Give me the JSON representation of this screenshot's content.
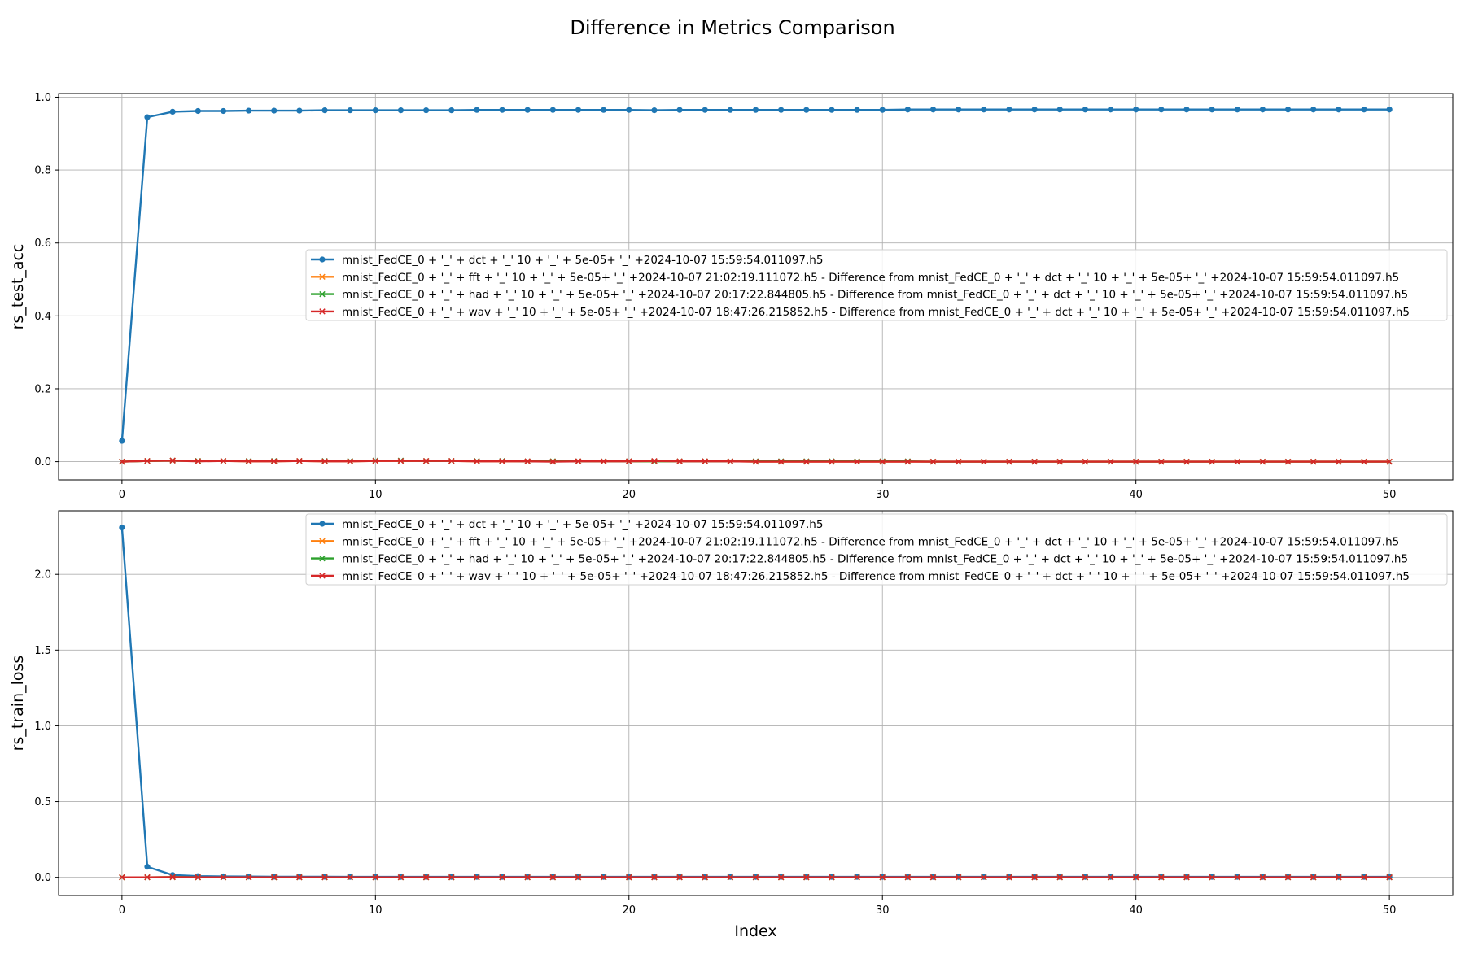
{
  "title": "Difference in Metrics Comparison",
  "legend_entries": [
    "mnist_FedCE_0 + '_' + dct + '_' 10 + '_' + 5e-05+ '_' +2024-10-07 15:59:54.011097.h5",
    "mnist_FedCE_0 + '_' + fft + '_' 10 + '_' + 5e-05+ '_' +2024-10-07 21:02:19.111072.h5 - Difference from mnist_FedCE_0 + '_' + dct + '_' 10 + '_' + 5e-05+ '_' +2024-10-07 15:59:54.011097.h5",
    "mnist_FedCE_0 + '_' + had + '_' 10 + '_' + 5e-05+ '_' +2024-10-07 20:17:22.844805.h5 - Difference from mnist_FedCE_0 + '_' + dct + '_' 10 + '_' + 5e-05+ '_' +2024-10-07 15:59:54.011097.h5",
    "mnist_FedCE_0 + '_' + wav + '_' 10 + '_' + 5e-05+ '_' +2024-10-07 18:47:26.215852.h5 - Difference from mnist_FedCE_0 + '_' + dct + '_' 10 + '_' + 5e-05+ '_' +2024-10-07 15:59:54.011097.h5"
  ],
  "colors": {
    "blue": "#1f77b4",
    "orange": "#ff7f0e",
    "green": "#2ca02c",
    "red": "#d62728",
    "grid": "#b0b0b0"
  },
  "chart_data": [
    {
      "type": "line",
      "ylabel": "rs_test_acc",
      "xlabel": "",
      "xlim": [
        -2.5,
        52.5
      ],
      "ylim": [
        -0.05,
        1.01
      ],
      "xticks": [
        0,
        10,
        20,
        30,
        40,
        50
      ],
      "yticks": [
        0.0,
        0.2,
        0.4,
        0.6,
        0.8,
        1.0
      ],
      "ytick_labels": [
        "0.0",
        "0.2",
        "0.4",
        "0.6",
        "0.8",
        "1.0"
      ],
      "grid": true,
      "legend_placement": "center-right",
      "x": [
        0,
        1,
        2,
        3,
        4,
        5,
        6,
        7,
        8,
        9,
        10,
        11,
        12,
        13,
        14,
        15,
        16,
        17,
        18,
        19,
        20,
        21,
        22,
        23,
        24,
        25,
        26,
        27,
        28,
        29,
        30,
        31,
        32,
        33,
        34,
        35,
        36,
        37,
        38,
        39,
        40,
        41,
        42,
        43,
        44,
        45,
        46,
        47,
        48,
        49,
        50
      ],
      "series": [
        {
          "marker": "circle",
          "color": "#1f77b4",
          "values": [
            0.057,
            0.945,
            0.96,
            0.962,
            0.962,
            0.963,
            0.963,
            0.963,
            0.964,
            0.964,
            0.964,
            0.964,
            0.964,
            0.964,
            0.965,
            0.965,
            0.965,
            0.965,
            0.965,
            0.965,
            0.965,
            0.964,
            0.965,
            0.965,
            0.965,
            0.965,
            0.965,
            0.965,
            0.965,
            0.965,
            0.965,
            0.966,
            0.966,
            0.966,
            0.966,
            0.966,
            0.966,
            0.966,
            0.966,
            0.966,
            0.966,
            0.966,
            0.966,
            0.966,
            0.966,
            0.966,
            0.966,
            0.966,
            0.966,
            0.966,
            0.966
          ]
        },
        {
          "marker": "x",
          "color": "#ff7f0e",
          "values": [
            0.0,
            0.002,
            0.003,
            0.002,
            0.002,
            0.001,
            0.001,
            0.002,
            0.001,
            0.001,
            0.002,
            0.002,
            0.002,
            0.002,
            0.001,
            0.001,
            0.001,
            0.001,
            0.001,
            0.001,
            0.001,
            0.001,
            0.001,
            0.001,
            0.001,
            0.0,
            0.0,
            0.0,
            0.0,
            0.0,
            0.0,
            0.0,
            0.0,
            0.0,
            0.0,
            0.0,
            0.0,
            0.0,
            0.0,
            0.0,
            0.0,
            0.0,
            0.0,
            0.0,
            0.0,
            0.0,
            0.0,
            0.0,
            0.0,
            0.0,
            0.0
          ]
        },
        {
          "marker": "x",
          "color": "#2ca02c",
          "values": [
            0.0,
            0.002,
            0.003,
            0.002,
            0.002,
            0.002,
            0.002,
            0.002,
            0.002,
            0.002,
            0.003,
            0.003,
            0.002,
            0.002,
            0.002,
            0.002,
            0.001,
            0.001,
            0.001,
            0.001,
            0.001,
            0.001,
            0.001,
            0.001,
            0.001,
            0.001,
            0.001,
            0.001,
            0.001,
            0.001,
            0.001,
            0.001,
            0.0,
            0.0,
            0.0,
            0.0,
            0.0,
            0.0,
            0.0,
            0.0,
            0.0,
            0.0,
            0.0,
            0.0,
            0.0,
            0.0,
            0.0,
            0.0,
            0.0,
            0.0,
            0.0
          ]
        },
        {
          "marker": "x",
          "color": "#d62728",
          "values": [
            0.0,
            0.002,
            0.003,
            0.001,
            0.002,
            0.001,
            0.001,
            0.002,
            0.001,
            0.001,
            0.002,
            0.002,
            0.002,
            0.002,
            0.001,
            0.001,
            0.001,
            0.0,
            0.001,
            0.001,
            0.001,
            0.002,
            0.001,
            0.001,
            0.001,
            0.0,
            0.0,
            0.0,
            0.0,
            0.0,
            0.0,
            0.0,
            0.0,
            0.0,
            0.0,
            0.0,
            0.0,
            0.0,
            0.0,
            0.0,
            0.0,
            0.0,
            0.0,
            0.0,
            0.0,
            0.0,
            0.0,
            0.0,
            0.0,
            0.0,
            0.0
          ]
        }
      ]
    },
    {
      "type": "line",
      "ylabel": "rs_train_loss",
      "xlabel": "Index",
      "xlim": [
        -2.5,
        52.5
      ],
      "ylim": [
        -0.12,
        2.42
      ],
      "xticks": [
        0,
        10,
        20,
        30,
        40,
        50
      ],
      "yticks": [
        0.0,
        0.5,
        1.0,
        1.5,
        2.0
      ],
      "ytick_labels": [
        "0.0",
        "0.5",
        "1.0",
        "1.5",
        "2.0"
      ],
      "grid": true,
      "legend_placement": "upper-right",
      "x": [
        0,
        1,
        2,
        3,
        4,
        5,
        6,
        7,
        8,
        9,
        10,
        11,
        12,
        13,
        14,
        15,
        16,
        17,
        18,
        19,
        20,
        21,
        22,
        23,
        24,
        25,
        26,
        27,
        28,
        29,
        30,
        31,
        32,
        33,
        34,
        35,
        36,
        37,
        38,
        39,
        40,
        41,
        42,
        43,
        44,
        45,
        46,
        47,
        48,
        49,
        50
      ],
      "series": [
        {
          "marker": "circle",
          "color": "#1f77b4",
          "values": [
            2.31,
            0.07,
            0.015,
            0.008,
            0.006,
            0.005,
            0.004,
            0.004,
            0.004,
            0.003,
            0.003,
            0.003,
            0.003,
            0.003,
            0.003,
            0.003,
            0.003,
            0.003,
            0.003,
            0.003,
            0.003,
            0.003,
            0.003,
            0.003,
            0.003,
            0.003,
            0.003,
            0.003,
            0.003,
            0.003,
            0.003,
            0.003,
            0.003,
            0.003,
            0.003,
            0.003,
            0.003,
            0.003,
            0.003,
            0.003,
            0.003,
            0.003,
            0.003,
            0.003,
            0.003,
            0.003,
            0.003,
            0.003,
            0.003,
            0.003,
            0.003
          ]
        },
        {
          "marker": "x",
          "color": "#ff7f0e",
          "values": [
            0.0,
            0.0,
            0.001,
            0.0,
            0.0,
            0.0,
            0.0,
            0.0,
            0.0,
            0.0,
            0.0,
            0.0,
            0.0,
            0.0,
            0.0,
            0.0,
            0.0,
            0.0,
            0.0,
            0.0,
            0.0,
            0.0,
            0.0,
            0.0,
            0.0,
            0.0,
            0.0,
            0.0,
            0.0,
            0.0,
            0.0,
            0.0,
            0.0,
            0.0,
            0.0,
            0.0,
            0.0,
            0.0,
            0.0,
            0.0,
            0.0,
            0.0,
            0.0,
            0.0,
            0.0,
            0.0,
            0.0,
            0.0,
            0.0,
            0.0,
            0.0
          ]
        },
        {
          "marker": "x",
          "color": "#2ca02c",
          "values": [
            0.0,
            0.0,
            0.001,
            0.0,
            0.0,
            0.0,
            0.0,
            0.0,
            0.0,
            0.0,
            0.0,
            0.0,
            0.0,
            0.0,
            0.0,
            0.0,
            0.0,
            0.0,
            0.0,
            0.0,
            0.0,
            0.0,
            0.0,
            0.0,
            0.0,
            0.0,
            0.0,
            0.0,
            0.0,
            0.0,
            0.0,
            0.0,
            0.0,
            0.0,
            0.0,
            0.0,
            0.0,
            0.0,
            0.0,
            0.0,
            0.0,
            0.0,
            0.0,
            0.0,
            0.0,
            0.0,
            0.0,
            0.0,
            0.0,
            0.0,
            0.0
          ]
        },
        {
          "marker": "x",
          "color": "#d62728",
          "values": [
            0.0,
            0.0,
            0.001,
            0.0,
            0.0,
            0.0,
            0.0,
            0.0,
            0.0,
            0.0,
            0.0,
            0.0,
            0.0,
            0.0,
            0.0,
            0.0,
            0.0,
            0.0,
            0.0,
            0.0,
            0.0,
            0.0,
            0.0,
            0.0,
            0.0,
            0.0,
            0.0,
            0.0,
            0.0,
            0.0,
            0.0,
            0.0,
            0.0,
            0.0,
            0.0,
            0.0,
            0.0,
            0.0,
            0.0,
            0.0,
            0.0,
            0.0,
            0.0,
            0.0,
            0.0,
            0.0,
            0.0,
            0.0,
            0.0,
            0.0,
            0.0
          ]
        }
      ]
    }
  ]
}
